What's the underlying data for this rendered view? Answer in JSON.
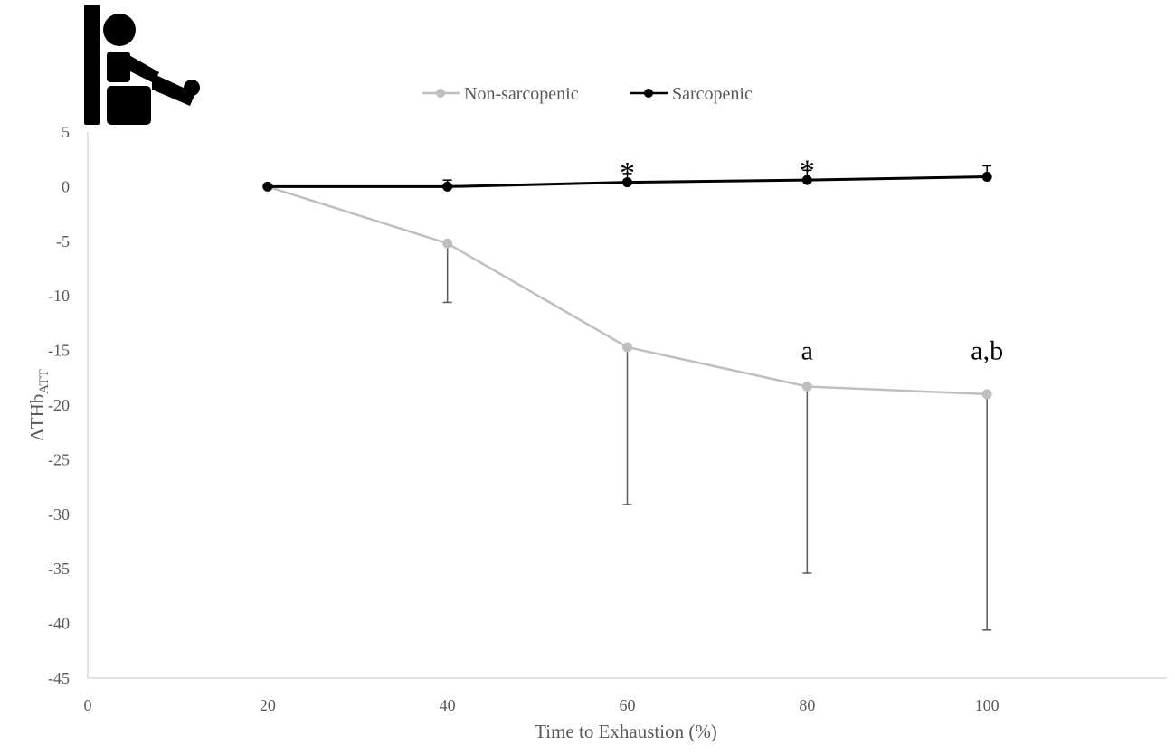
{
  "chart_data": {
    "type": "line",
    "x": [
      20,
      40,
      60,
      80,
      100
    ],
    "xlabel": "Time to Exhaustion (%)",
    "ylabel": "ΔTHb",
    "ylabel_sub": "ATT",
    "xlim": [
      0,
      120
    ],
    "ylim": [
      -45,
      5
    ],
    "x_ticks": [
      0,
      20,
      40,
      60,
      80,
      100
    ],
    "y_ticks": [
      5,
      0,
      -5,
      -10,
      -15,
      -20,
      -25,
      -30,
      -35,
      -40,
      -45
    ],
    "grid": false,
    "legend_position": "top-center",
    "series": [
      {
        "name": "Non-sarcopenic",
        "color": "#bfbfbf",
        "values": [
          0,
          -5.2,
          -14.7,
          -18.3,
          -19.0
        ],
        "error_sd": [
          0,
          5.4,
          14.4,
          17.1,
          21.6
        ]
      },
      {
        "name": "Sarcopenic",
        "color": "#000000",
        "values": [
          0,
          0,
          0.4,
          0.6,
          0.9
        ],
        "error_sd": [
          0,
          0.6,
          0.8,
          0.9,
          1.0
        ]
      }
    ],
    "annotations": [
      {
        "x": 60,
        "y": 1.2,
        "text": "*",
        "kind": "star"
      },
      {
        "x": 80,
        "y": 1.4,
        "text": "*",
        "kind": "star"
      },
      {
        "x": 80,
        "y": -15.8,
        "text": "a",
        "kind": "label"
      },
      {
        "x": 100,
        "y": -15.8,
        "text": "a,b",
        "kind": "label"
      }
    ]
  },
  "icon": {
    "name": "seated-person-exercise-icon"
  }
}
